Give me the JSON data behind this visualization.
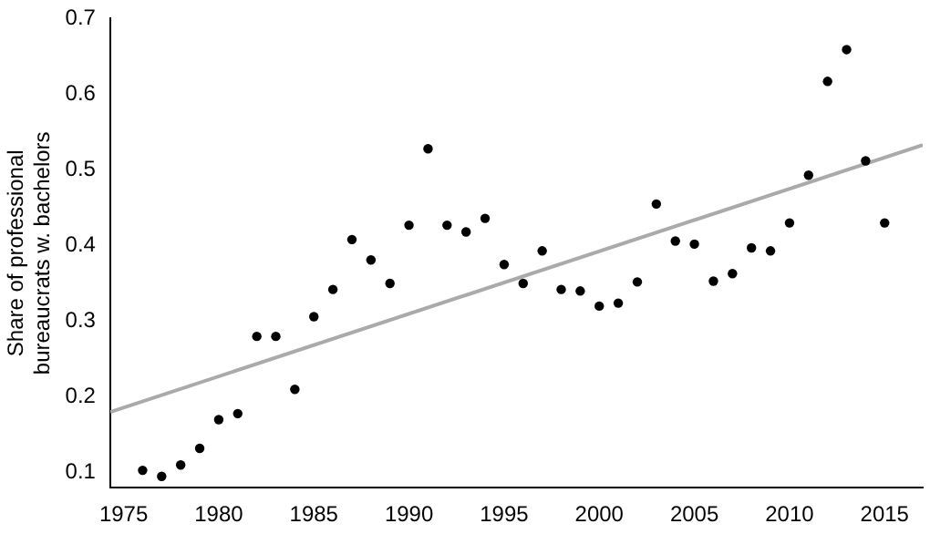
{
  "chart_data": {
    "type": "scatter",
    "ylabel": "Share of professional\nbureaucrats w. bachelors",
    "marker": "circle",
    "grid": false,
    "legend": false,
    "x": [
      1976,
      1977,
      1978,
      1979,
      1980,
      1981,
      1982,
      1983,
      1984,
      1985,
      1986,
      1987,
      1988,
      1989,
      1990,
      1991,
      1992,
      1993,
      1994,
      1995,
      1996,
      1997,
      1998,
      1999,
      2000,
      2001,
      2002,
      2003,
      2004,
      2005,
      2006,
      2007,
      2008,
      2009,
      2010,
      2011,
      2012,
      2013,
      2014,
      2015
    ],
    "series": [
      {
        "color": "#000000",
        "values": [
          0.103,
          0.095,
          0.11,
          0.132,
          0.17,
          0.178,
          0.28,
          0.28,
          0.21,
          0.306,
          0.342,
          0.408,
          0.381,
          0.35,
          0.427,
          0.528,
          0.427,
          0.418,
          0.436,
          0.375,
          0.35,
          0.393,
          0.342,
          0.34,
          0.32,
          0.324,
          0.352,
          0.455,
          0.406,
          0.402,
          0.353,
          0.363,
          0.397,
          0.393,
          0.43,
          0.493,
          0.617,
          0.659,
          0.512,
          0.43
        ]
      },
      {
        "type": "line",
        "color": "#aaaaaa",
        "marker": "none",
        "x": [
          1974.3,
          2017
        ],
        "values": [
          0.18,
          0.533
        ]
      }
    ],
    "xlim": [
      1974.3,
      2017
    ],
    "xticks": [
      1975,
      1980,
      1985,
      1990,
      1995,
      2000,
      2005,
      2010,
      2015
    ],
    "ylim": [
      0.08,
      0.7
    ],
    "yticks": [
      0.1,
      0.2,
      0.3,
      0.4,
      0.5,
      0.6,
      0.7
    ]
  }
}
